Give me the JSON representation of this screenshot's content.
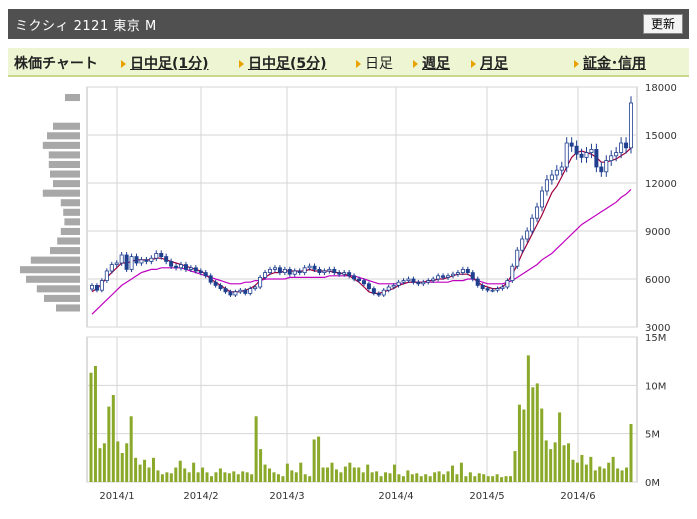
{
  "header": {
    "title": "ミクシィ  2121  東京 M",
    "refresh_label": "更新"
  },
  "tabs": [
    {
      "label": "株価チャート",
      "arrow": false,
      "link": false
    },
    {
      "label": "日中足(1分)",
      "arrow": true,
      "link": true
    },
    {
      "label": "日中足(5分)",
      "arrow": true,
      "link": true
    },
    {
      "label": "日足",
      "arrow": true,
      "link": false
    },
    {
      "label": "週足",
      "arrow": true,
      "link": true
    },
    {
      "label": "月足",
      "arrow": true,
      "link": true
    },
    {
      "label": "証金･信用",
      "arrow": true,
      "link": true
    }
  ],
  "colors": {
    "candle": "#1f3f8f",
    "ma_short": "#a00040",
    "ma_long": "#c000c0",
    "volume": "#8aa82a",
    "grid": "#d6d6d6"
  },
  "chart_data": [
    {
      "type": "candlestick",
      "y_ticks": [
        "18000",
        "15000",
        "12000",
        "9000",
        "6000",
        "3000"
      ],
      "ylim": [
        3000,
        18000
      ],
      "x_labels": [
        "2014/1",
        "2014/2",
        "2014/3",
        "2014/4",
        "2014/5",
        "2014/6"
      ],
      "close": [
        5600,
        5300,
        5900,
        6500,
        6900,
        7000,
        7500,
        6600,
        7400,
        7000,
        7200,
        7100,
        7300,
        7600,
        7400,
        7100,
        6800,
        6700,
        6900,
        6600,
        6700,
        6500,
        6400,
        6200,
        5800,
        5600,
        5400,
        5200,
        5000,
        5200,
        5300,
        5100,
        5400,
        5500,
        6100,
        6400,
        6600,
        6700,
        6400,
        6600,
        6300,
        6500,
        6400,
        6700,
        6800,
        6600,
        6400,
        6500,
        6600,
        6400,
        6300,
        6400,
        6200,
        6000,
        5900,
        5700,
        5400,
        5100,
        5000,
        5300,
        5500,
        5600,
        5800,
        5900,
        6000,
        5800,
        5700,
        5800,
        5900,
        6000,
        6200,
        6100,
        6200,
        6300,
        6400,
        6600,
        6400,
        6000,
        5600,
        5400,
        5300,
        5300,
        5400,
        5500,
        5900,
        6800,
        7800,
        8500,
        9000,
        9800,
        10500,
        11500,
        12200,
        12500,
        12800,
        13000,
        14500,
        14300,
        13800,
        13600,
        13900,
        14100,
        13000,
        12700,
        13400,
        13700,
        13900,
        14500,
        14200,
        17000
      ],
      "ma_short": [
        5200,
        5400,
        5700,
        6100,
        6400,
        6700,
        7000,
        7000,
        7100,
        7200,
        7200,
        7200,
        7200,
        7300,
        7300,
        7200,
        7100,
        7000,
        6900,
        6800,
        6700,
        6600,
        6500,
        6300,
        6000,
        5800,
        5600,
        5400,
        5200,
        5200,
        5200,
        5300,
        5400,
        5600,
        5900,
        6100,
        6300,
        6400,
        6400,
        6500,
        6500,
        6500,
        6500,
        6500,
        6600,
        6500,
        6500,
        6500,
        6500,
        6400,
        6400,
        6300,
        6200,
        6000,
        5800,
        5500,
        5200,
        5100,
        5100,
        5200,
        5300,
        5400,
        5600,
        5700,
        5800,
        5800,
        5800,
        5800,
        5900,
        5900,
        6000,
        6000,
        6100,
        6200,
        6300,
        6300,
        6300,
        6100,
        5800,
        5600,
        5500,
        5400,
        5400,
        5500,
        5800,
        6300,
        6900,
        7600,
        8200,
        8800,
        9400,
        10000,
        10700,
        11400,
        11800,
        12400,
        13000,
        13600,
        13900,
        14000,
        13900,
        13800,
        13600,
        13300,
        13300,
        13400,
        13500,
        13700,
        13900,
        14200
      ],
      "ma_long": [
        3800,
        4100,
        4400,
        4700,
        5000,
        5300,
        5600,
        5800,
        6000,
        6200,
        6400,
        6500,
        6600,
        6600,
        6700,
        6700,
        6700,
        6700,
        6700,
        6600,
        6500,
        6400,
        6300,
        6200,
        6100,
        6000,
        5900,
        5800,
        5700,
        5700,
        5700,
        5800,
        5800,
        5900,
        5900,
        6000,
        6000,
        6000,
        6000,
        6000,
        6100,
        6100,
        6100,
        6100,
        6100,
        6100,
        6100,
        6100,
        6200,
        6200,
        6200,
        6200,
        6200,
        6200,
        6100,
        6000,
        5900,
        5800,
        5700,
        5700,
        5700,
        5700,
        5700,
        5700,
        5800,
        5800,
        5800,
        5800,
        5800,
        5800,
        5800,
        5800,
        5800,
        5900,
        5900,
        5900,
        6000,
        6000,
        5900,
        5800,
        5700,
        5700,
        5700,
        5700,
        5800,
        5900,
        6100,
        6300,
        6500,
        6700,
        6900,
        7200,
        7400,
        7600,
        7900,
        8200,
        8500,
        8800,
        9100,
        9400,
        9600,
        9800,
        10000,
        10200,
        10400,
        10600,
        10800,
        11100,
        11300,
        11600
      ],
      "volume_profile": [
        0.25,
        0,
        0,
        0.45,
        0.55,
        0.62,
        0.52,
        0.52,
        0.5,
        0.45,
        0.62,
        0.32,
        0.28,
        0.26,
        0.32,
        0.38,
        0.5,
        0.82,
        1.0,
        0.9,
        0.72,
        0.6,
        0.4
      ]
    },
    {
      "type": "bar",
      "y_ticks": [
        "15M",
        "10M",
        "5M",
        "0M"
      ],
      "ylim": [
        0,
        15
      ],
      "values": [
        11.3,
        12,
        3.5,
        4,
        7.8,
        9,
        4.2,
        3,
        4,
        6.8,
        2.5,
        1.8,
        2.3,
        1.5,
        2.5,
        1.2,
        0.8,
        1,
        0.9,
        1.5,
        2.2,
        1.4,
        1,
        2,
        1,
        1.5,
        1,
        0.6,
        1,
        1.4,
        1,
        0.9,
        1.1,
        0.8,
        1.1,
        1,
        0.8,
        6.8,
        3.4,
        1.8,
        1.4,
        1,
        0.8,
        0.6,
        1.9,
        1.2,
        1,
        2,
        0.8,
        0.6,
        4.4,
        4.7,
        1.5,
        1.5,
        2,
        1.3,
        1,
        1.6,
        2,
        1.5,
        1.5,
        1,
        1.8,
        1,
        1.1,
        0.6,
        1,
        0.9,
        1.8,
        0.8,
        0.6,
        1.2,
        0.8,
        0.9,
        0.6,
        0.8,
        0.6,
        1,
        1.1,
        0.8,
        1.1,
        1.7,
        0.8,
        2,
        0.6,
        1,
        0.6,
        0.9,
        0.8,
        0.6,
        0.6,
        0.8,
        0.5,
        0.6,
        0.6,
        3.2,
        8,
        7.5,
        13.1,
        9.8,
        10.2,
        7.6,
        4.3,
        3.4,
        4.1,
        7.2,
        3.8,
        4,
        2.3,
        2,
        2.8,
        1.8,
        2.6,
        1.2,
        1.6,
        1.4,
        2,
        2.6,
        1.4,
        1.2,
        1.5,
        6
      ],
      "volume_unit": "M"
    }
  ]
}
